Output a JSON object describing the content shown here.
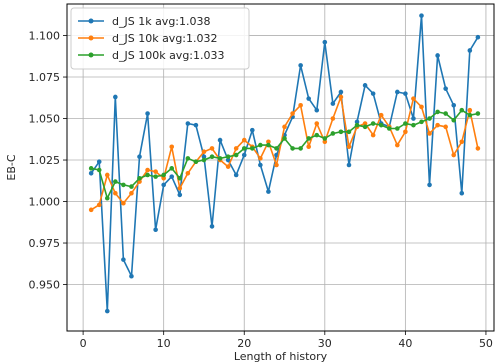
{
  "chart_data": {
    "type": "line",
    "xlabel": "Length of history",
    "ylabel": "EB-C",
    "xlim": [
      -2,
      51
    ],
    "ylim": [
      0.922,
      1.119
    ],
    "xticks": [
      0,
      10,
      20,
      30,
      40,
      50
    ],
    "xtick_labels": [
      "0",
      "10",
      "20",
      "30",
      "40",
      "50"
    ],
    "yticks": [
      0.95,
      0.975,
      1.0,
      1.025,
      1.05,
      1.075,
      1.1
    ],
    "ytick_labels": [
      "0.950",
      "0.975",
      "1.000",
      "1.025",
      "1.050",
      "1.075",
      "1.100"
    ],
    "grid": true,
    "legend_position": "top-left",
    "x": [
      1,
      2,
      3,
      4,
      5,
      6,
      7,
      8,
      9,
      10,
      11,
      12,
      13,
      14,
      15,
      16,
      17,
      18,
      19,
      20,
      21,
      22,
      23,
      24,
      25,
      26,
      27,
      28,
      29,
      30,
      31,
      32,
      33,
      34,
      35,
      36,
      37,
      38,
      39,
      40,
      41,
      42,
      43,
      44,
      45,
      46,
      47,
      48,
      49
    ],
    "series": [
      {
        "name": "d_JS 1k avg:1.038",
        "color": "#1f77b4",
        "values": [
          1.017,
          1.024,
          0.934,
          1.063,
          0.965,
          0.955,
          1.027,
          1.053,
          0.983,
          1.01,
          1.015,
          1.004,
          1.047,
          1.046,
          1.027,
          0.985,
          1.037,
          1.025,
          1.016,
          1.028,
          1.043,
          1.022,
          1.006,
          1.028,
          1.04,
          1.051,
          1.082,
          1.062,
          1.055,
          1.096,
          1.059,
          1.066,
          1.022,
          1.048,
          1.07,
          1.065,
          1.047,
          1.045,
          1.066,
          1.065,
          1.05,
          1.112,
          1.01,
          1.088,
          1.068,
          1.058,
          1.005,
          1.091,
          1.099
        ]
      },
      {
        "name": "d_JS 10k avg:1.032",
        "color": "#ff7f0e",
        "values": [
          0.995,
          0.998,
          1.016,
          1.005,
          0.999,
          1.005,
          1.012,
          1.019,
          1.018,
          1.014,
          1.033,
          1.008,
          1.017,
          1.024,
          1.03,
          1.032,
          1.025,
          1.021,
          1.032,
          1.037,
          1.033,
          1.026,
          1.036,
          1.022,
          1.045,
          1.053,
          1.058,
          1.033,
          1.047,
          1.036,
          1.05,
          1.063,
          1.033,
          1.045,
          1.047,
          1.04,
          1.052,
          1.045,
          1.034,
          1.042,
          1.062,
          1.057,
          1.041,
          1.046,
          1.045,
          1.028,
          1.036,
          1.055,
          1.032
        ]
      },
      {
        "name": "d_JS 100k avg:1.033",
        "color": "#2ca02c",
        "values": [
          1.02,
          1.019,
          1.002,
          1.012,
          1.01,
          1.009,
          1.014,
          1.016,
          1.015,
          1.016,
          1.02,
          1.014,
          1.026,
          1.024,
          1.025,
          1.027,
          1.026,
          1.027,
          1.028,
          1.032,
          1.032,
          1.034,
          1.034,
          1.032,
          1.038,
          1.032,
          1.032,
          1.038,
          1.04,
          1.038,
          1.041,
          1.042,
          1.042,
          1.046,
          1.045,
          1.047,
          1.046,
          1.044,
          1.044,
          1.047,
          1.046,
          1.048,
          1.05,
          1.054,
          1.053,
          1.049,
          1.055,
          1.052,
          1.053
        ]
      }
    ]
  }
}
